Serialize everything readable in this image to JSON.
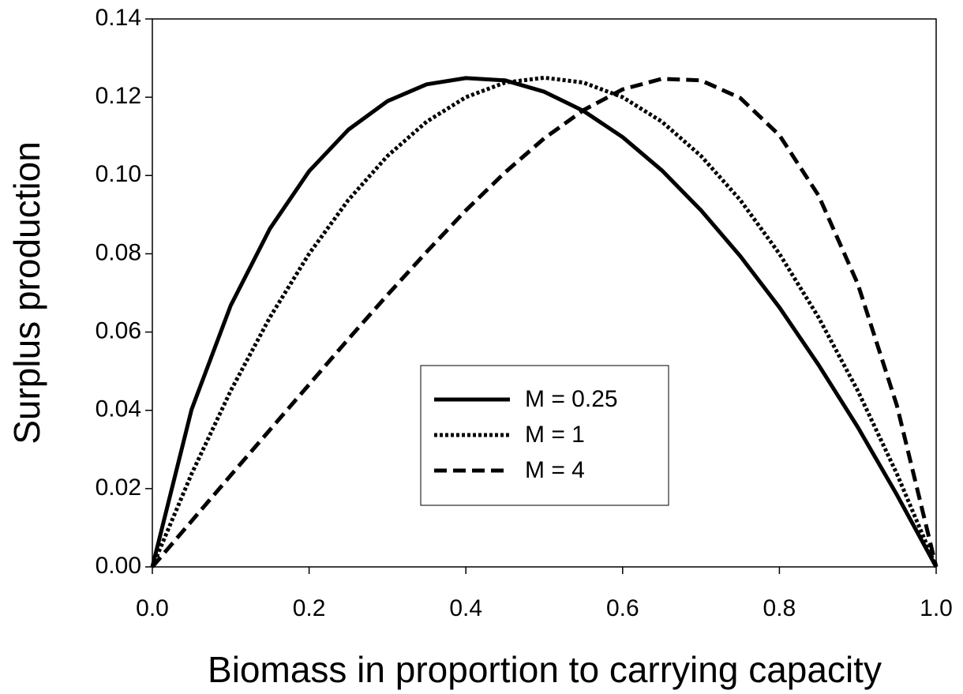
{
  "chart_data": {
    "type": "line",
    "xlabel": "Biomass in proportion to carrying capacity",
    "ylabel": "Surplus production",
    "x": [
      0,
      0.05,
      0.1,
      0.15,
      0.2,
      0.25,
      0.3,
      0.35,
      0.4,
      0.45,
      0.5,
      0.55,
      0.6,
      0.65,
      0.7,
      0.75,
      0.8,
      0.85,
      0.9,
      0.95,
      1.0
    ],
    "series": [
      {
        "name": "M = 0.25",
        "color": "#000000",
        "dash": "none",
        "values": [
          0,
          0.0402,
          0.0668,
          0.0864,
          0.1011,
          0.1117,
          0.119,
          0.1233,
          0.1249,
          0.1243,
          0.1214,
          0.1165,
          0.1098,
          0.1013,
          0.0911,
          0.0794,
          0.0663,
          0.0516,
          0.0357,
          0.0184,
          0
        ]
      },
      {
        "name": "M = 1",
        "color": "#000000",
        "dash": "4 3",
        "values": [
          0,
          0.02375,
          0.045,
          0.06375,
          0.08,
          0.09375,
          0.105,
          0.11375,
          0.12,
          0.12375,
          0.125,
          0.12375,
          0.12,
          0.11375,
          0.105,
          0.09375,
          0.08,
          0.06375,
          0.045,
          0.02375,
          0
        ]
      },
      {
        "name": "M = 4",
        "color": "#000000",
        "dash": "16 8",
        "values": [
          0,
          0.0117,
          0.0234,
          0.035,
          0.0466,
          0.0582,
          0.0695,
          0.0805,
          0.0911,
          0.1008,
          0.1095,
          0.1167,
          0.122,
          0.1247,
          0.1243,
          0.1198,
          0.1103,
          0.0949,
          0.0723,
          0.0412,
          0
        ]
      }
    ],
    "xlim": [
      0,
      1.0
    ],
    "ylim": [
      0,
      0.14
    ],
    "xticks": [
      {
        "value": 0,
        "label": "0.0"
      },
      0.2,
      0.4,
      0.6,
      0.8,
      {
        "value": 1.0,
        "label": "1.0"
      }
    ],
    "yticks": [
      {
        "value": 0,
        "label": "0.00"
      },
      0.02,
      0.04,
      0.06,
      0.08,
      {
        "value": 0.1,
        "label": "0.10"
      },
      {
        "value": 0.12,
        "label": "0.12"
      },
      {
        "value": 0.14,
        "label": "0.14"
      }
    ],
    "grid": false
  }
}
